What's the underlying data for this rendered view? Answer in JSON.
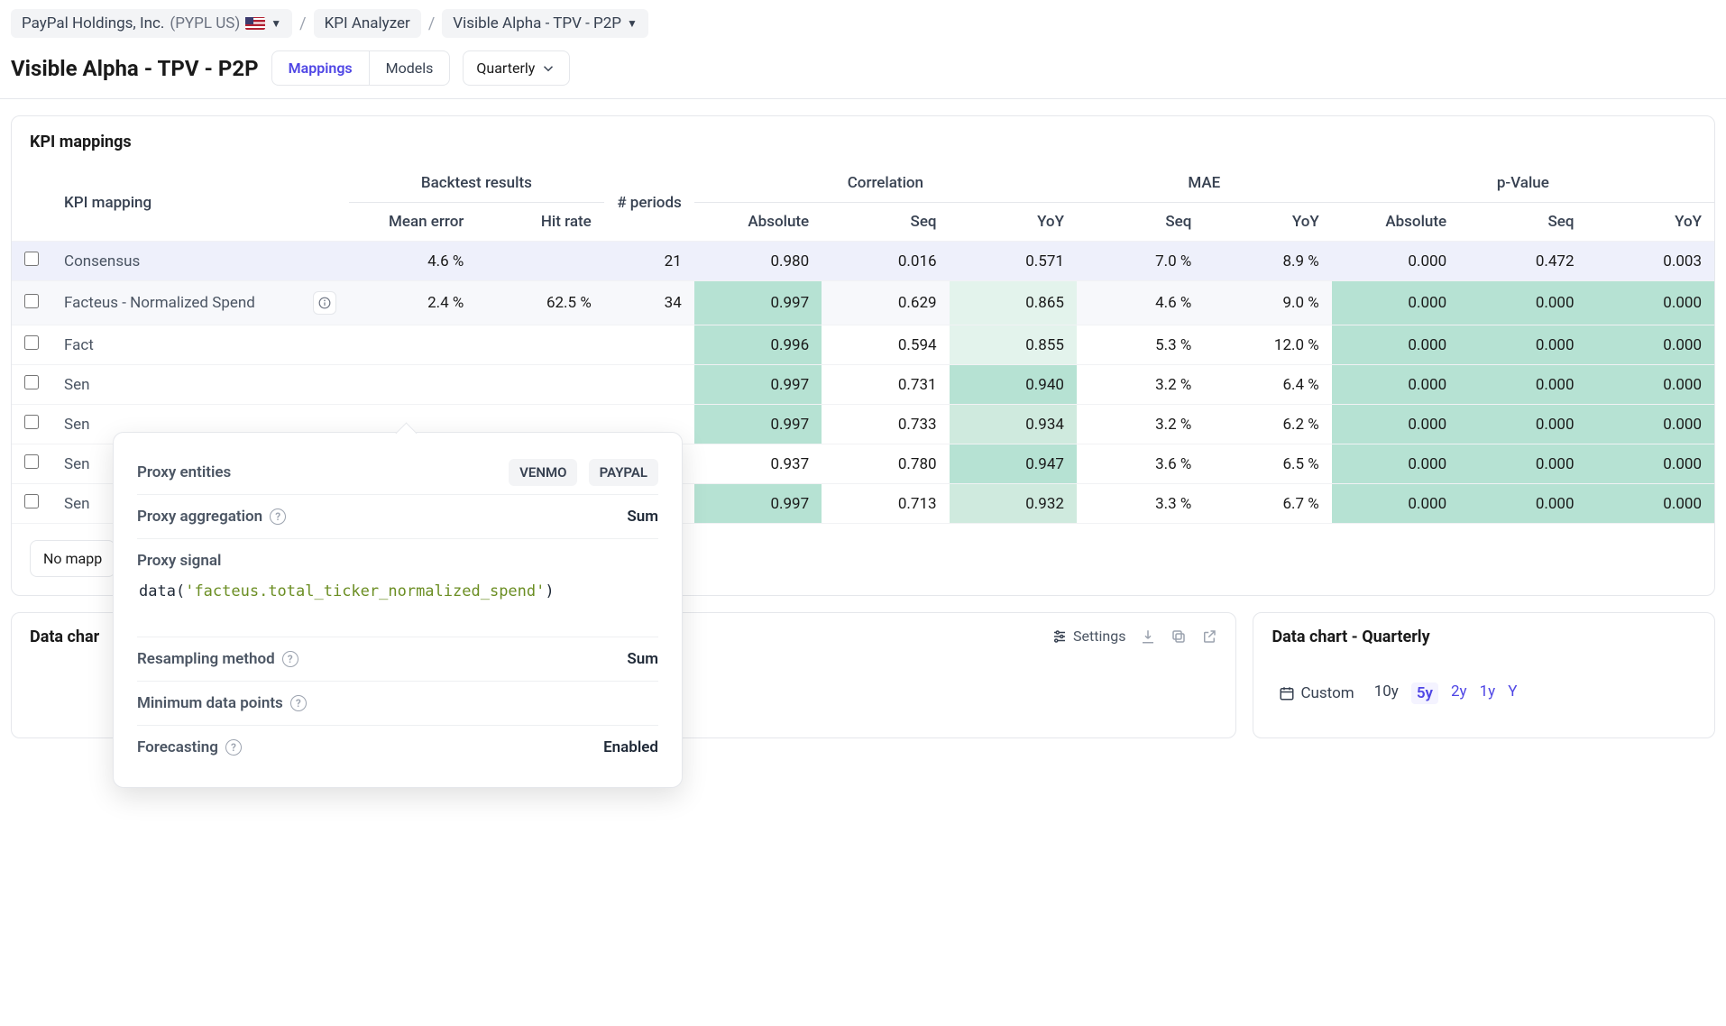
{
  "breadcrumb": {
    "company": "PayPal Holdings, Inc.",
    "ticker": "(PYPL US)",
    "analyzer": "KPI Analyzer",
    "dataset": "Visible Alpha - TPV - P2P"
  },
  "title": "Visible Alpha - TPV - P2P",
  "tabs": {
    "mappings": "Mappings",
    "models": "Models"
  },
  "period": "Quarterly",
  "panel_title": "KPI mappings",
  "table": {
    "group_headers": {
      "backtest": "Backtest results",
      "correlation": "Correlation",
      "mae": "MAE",
      "pvalue": "p-Value"
    },
    "columns": {
      "kpi": "KPI mapping",
      "mean_error": "Mean error",
      "hit_rate": "Hit rate",
      "periods": "# periods",
      "abs": "Absolute",
      "seq": "Seq",
      "yoy": "YoY"
    },
    "rows": [
      {
        "name": "Consensus",
        "mean_error": "4.6 %",
        "hit_rate": "",
        "periods": "21",
        "c_abs": "0.980",
        "c_seq": "0.016",
        "c_yoy": "0.571",
        "m_seq": "7.0 %",
        "m_yoy": "8.9 %",
        "p_abs": "0.000",
        "p_seq": "0.472",
        "p_yoy": "0.003"
      },
      {
        "name": "Facteus - Normalized Spend",
        "mean_error": "2.4 %",
        "hit_rate": "62.5 %",
        "periods": "34",
        "c_abs": "0.997",
        "c_seq": "0.629",
        "c_yoy": "0.865",
        "m_seq": "4.6 %",
        "m_yoy": "9.0 %",
        "p_abs": "0.000",
        "p_seq": "0.000",
        "p_yoy": "0.000"
      },
      {
        "name": "Fact",
        "mean_error": "",
        "hit_rate": "",
        "periods": "",
        "c_abs": "0.996",
        "c_seq": "0.594",
        "c_yoy": "0.855",
        "m_seq": "5.3 %",
        "m_yoy": "12.0 %",
        "p_abs": "0.000",
        "p_seq": "0.000",
        "p_yoy": "0.000"
      },
      {
        "name": "Sen",
        "mean_error": "",
        "hit_rate": "",
        "periods": "",
        "c_abs": "0.997",
        "c_seq": "0.731",
        "c_yoy": "0.940",
        "m_seq": "3.2 %",
        "m_yoy": "6.4 %",
        "p_abs": "0.000",
        "p_seq": "0.000",
        "p_yoy": "0.000"
      },
      {
        "name": "Sen",
        "mean_error": "",
        "hit_rate": "",
        "periods": "",
        "c_abs": "0.997",
        "c_seq": "0.733",
        "c_yoy": "0.934",
        "m_seq": "3.2 %",
        "m_yoy": "6.2 %",
        "p_abs": "0.000",
        "p_seq": "0.000",
        "p_yoy": "0.000"
      },
      {
        "name": "Sen",
        "mean_error": "",
        "hit_rate": "",
        "periods": "",
        "c_abs": "0.937",
        "c_seq": "0.780",
        "c_yoy": "0.947",
        "m_seq": "3.6 %",
        "m_yoy": "6.5 %",
        "p_abs": "0.000",
        "p_seq": "0.000",
        "p_yoy": "0.000"
      },
      {
        "name": "Sen",
        "mean_error": "",
        "hit_rate": "",
        "periods": "",
        "c_abs": "0.997",
        "c_seq": "0.713",
        "c_yoy": "0.932",
        "m_seq": "3.3 %",
        "m_yoy": "6.7 %",
        "p_abs": "0.000",
        "p_seq": "0.000",
        "p_yoy": "0.000"
      }
    ]
  },
  "no_mapping": "No mapp",
  "popover": {
    "entities_label": "Proxy entities",
    "entity_tags": [
      "VENMO",
      "PAYPAL"
    ],
    "aggregation_label": "Proxy aggregation",
    "aggregation_value": "Sum",
    "signal_label": "Proxy signal",
    "signal_fn": "data",
    "signal_str": "'facteus.total_ticker_normalized_spend'",
    "resampling_label": "Resampling method",
    "resampling_value": "Sum",
    "min_points_label": "Minimum data points",
    "forecasting_label": "Forecasting",
    "forecasting_value": "Enabled"
  },
  "charts": {
    "left_title": "Data char",
    "right_title": "Data chart - Quarterly",
    "settings": "Settings",
    "ranges": {
      "custom": "Custom",
      "r10y": "10y",
      "r5y": "5y",
      "r2y": "2y",
      "r1y": "1y",
      "ry": "Y"
    }
  },
  "highlights": {
    "c_abs": {
      "0": "",
      "1": "hl-strong",
      "2": "hl-strong",
      "3": "hl-strong",
      "4": "hl-strong",
      "5": "",
      "6": "hl-strong"
    },
    "c_seq": {
      "0": "",
      "1": "",
      "2": "",
      "3": "",
      "4": "",
      "5": "",
      "6": ""
    },
    "c_yoy": {
      "0": "",
      "1": "hl-light",
      "2": "hl-light",
      "3": "hl-strong",
      "4": "hl-med",
      "5": "hl-strong",
      "6": "hl-med"
    },
    "p_abs": {
      "0": "",
      "1": "hl-strong",
      "2": "hl-strong",
      "3": "hl-strong",
      "4": "hl-strong",
      "5": "hl-strong",
      "6": "hl-strong"
    },
    "p_seq": {
      "0": "",
      "1": "hl-strong",
      "2": "hl-strong",
      "3": "hl-strong",
      "4": "hl-strong",
      "5": "hl-strong",
      "6": "hl-strong"
    },
    "p_yoy": {
      "0": "",
      "1": "hl-strong",
      "2": "hl-strong",
      "3": "hl-strong",
      "4": "hl-strong",
      "5": "hl-strong",
      "6": "hl-strong"
    }
  }
}
